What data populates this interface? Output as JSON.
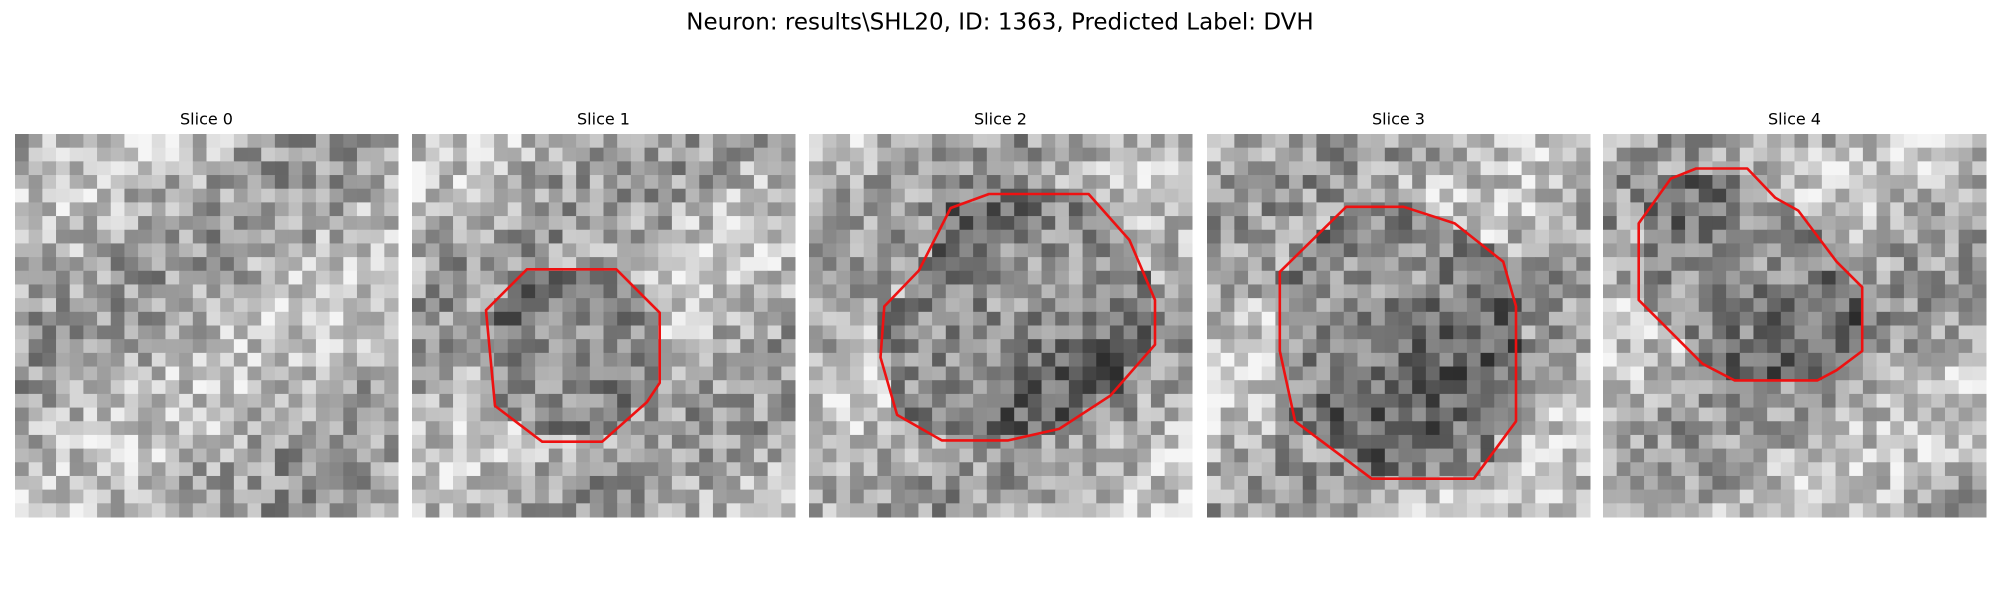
{
  "title": "Neuron: results\\SHL20, ID: 1363, Predicted Label: DVH",
  "panels": [
    {
      "title": "Slice 0"
    },
    {
      "title": "Slice 1"
    },
    {
      "title": "Slice 2"
    },
    {
      "title": "Slice 3"
    },
    {
      "title": "Slice 4"
    }
  ]
}
